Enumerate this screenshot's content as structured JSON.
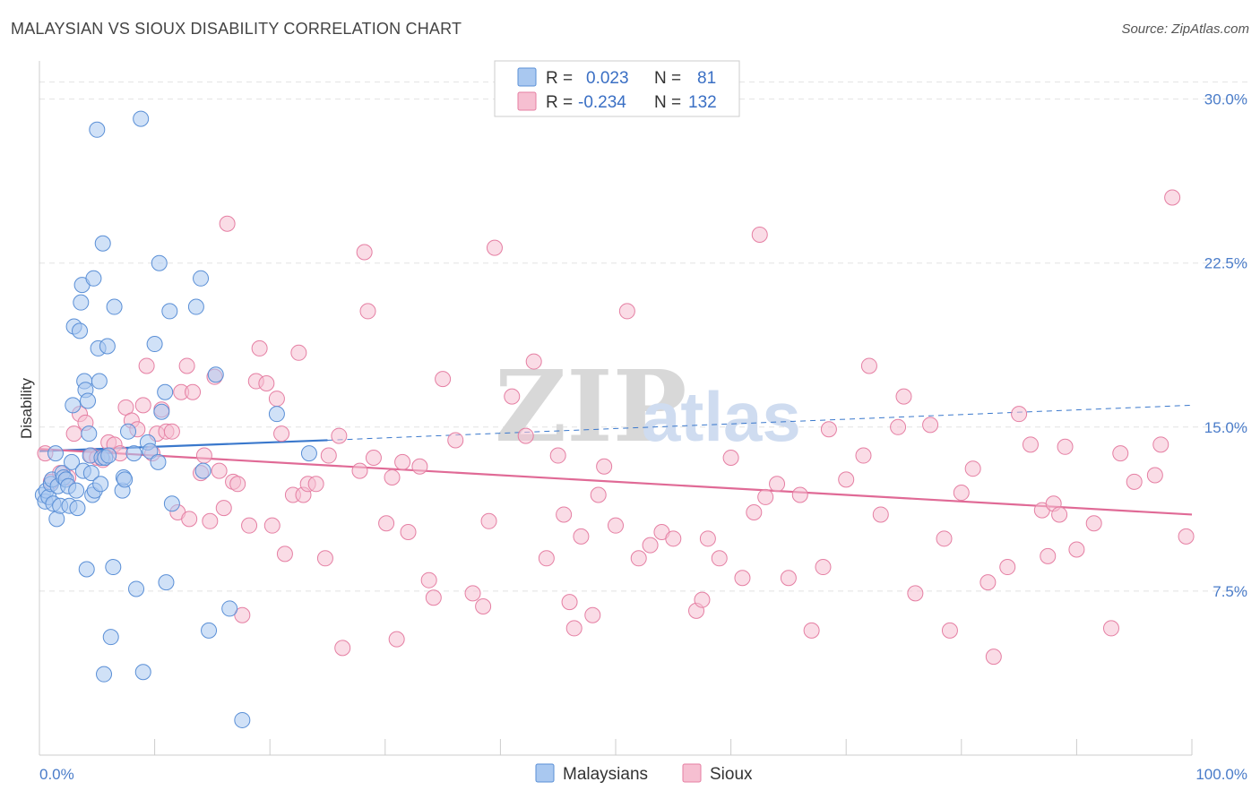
{
  "title": "MALAYSIAN VS SIOUX DISABILITY CORRELATION CHART",
  "source": "Source: ZipAtlas.com",
  "watermark": {
    "zip": "ZIP",
    "atlas": "atlas"
  },
  "legend": {
    "rows": [
      {
        "r_label": "R =",
        "r_value": "0.023",
        "n_label": "N =",
        "n_value": "81",
        "color": "#a9c8f0",
        "stroke": "#5a8fd6"
      },
      {
        "r_label": "R =",
        "r_value": "-0.234",
        "n_label": "N =",
        "n_value": "132",
        "color": "#f6bfd1",
        "stroke": "#e57fa3"
      }
    ]
  },
  "bottom_legend": [
    {
      "label": "Malaysians",
      "color": "#a9c8f0",
      "stroke": "#5a8fd6"
    },
    {
      "label": "Sioux",
      "color": "#f6bfd1",
      "stroke": "#e57fa3"
    }
  ],
  "chart_data": {
    "type": "scatter",
    "xlabel": "",
    "ylabel": "Disability",
    "xlim": [
      0,
      100
    ],
    "ylim": [
      0,
      31.5
    ],
    "x_tick_labels": [
      {
        "value": 0,
        "label": "0.0%"
      },
      {
        "value": 100,
        "label": "100.0%"
      }
    ],
    "y_ticks": [
      {
        "value": 7.5,
        "label": "7.5%"
      },
      {
        "value": 15.0,
        "label": "15.0%"
      },
      {
        "value": 22.5,
        "label": "22.5%"
      },
      {
        "value": 30.0,
        "label": "30.0%"
      }
    ],
    "grid": true,
    "series": [
      {
        "name": "Malaysians",
        "color": "#a9c8f0",
        "stroke": "#5a8fd6",
        "trend": {
          "x0": 0,
          "y0": 13.9,
          "x1": 25,
          "y1": 14.4,
          "dash_to_x": 100,
          "dash_to_y": 16.0,
          "color": "#3a78cc"
        },
        "points": [
          [
            0.3,
            11.9
          ],
          [
            0.5,
            11.6
          ],
          [
            0.6,
            12.1
          ],
          [
            0.8,
            11.8
          ],
          [
            1.0,
            12.4
          ],
          [
            1.1,
            12.6
          ],
          [
            1.2,
            11.5
          ],
          [
            1.4,
            13.8
          ],
          [
            1.5,
            10.8
          ],
          [
            1.6,
            12.3
          ],
          [
            1.8,
            11.4
          ],
          [
            2.0,
            12.9
          ],
          [
            2.1,
            12.7
          ],
          [
            2.3,
            12.6
          ],
          [
            2.5,
            12.3
          ],
          [
            2.6,
            11.4
          ],
          [
            2.8,
            13.4
          ],
          [
            2.9,
            16.0
          ],
          [
            3.0,
            19.6
          ],
          [
            3.2,
            12.1
          ],
          [
            3.3,
            11.3
          ],
          [
            3.5,
            19.4
          ],
          [
            3.6,
            20.7
          ],
          [
            3.7,
            21.5
          ],
          [
            3.8,
            13.0
          ],
          [
            3.9,
            17.1
          ],
          [
            4.0,
            16.7
          ],
          [
            4.1,
            8.5
          ],
          [
            4.2,
            16.2
          ],
          [
            4.3,
            14.7
          ],
          [
            4.4,
            13.7
          ],
          [
            4.5,
            12.9
          ],
          [
            4.6,
            11.9
          ],
          [
            4.7,
            21.8
          ],
          [
            4.8,
            12.1
          ],
          [
            5.0,
            28.6
          ],
          [
            5.1,
            18.6
          ],
          [
            5.2,
            17.1
          ],
          [
            5.3,
            12.4
          ],
          [
            5.4,
            13.6
          ],
          [
            5.5,
            23.4
          ],
          [
            5.6,
            3.7
          ],
          [
            5.7,
            13.6
          ],
          [
            5.9,
            18.7
          ],
          [
            6.0,
            13.7
          ],
          [
            6.2,
            5.4
          ],
          [
            6.4,
            8.6
          ],
          [
            6.5,
            20.5
          ],
          [
            7.2,
            12.1
          ],
          [
            7.3,
            12.7
          ],
          [
            7.4,
            12.6
          ],
          [
            7.7,
            14.8
          ],
          [
            8.2,
            13.8
          ],
          [
            8.4,
            7.6
          ],
          [
            8.8,
            29.1
          ],
          [
            9.0,
            3.8
          ],
          [
            9.4,
            14.3
          ],
          [
            9.6,
            13.9
          ],
          [
            10.0,
            18.8
          ],
          [
            10.3,
            13.4
          ],
          [
            10.4,
            22.5
          ],
          [
            10.6,
            15.7
          ],
          [
            10.9,
            16.6
          ],
          [
            11.0,
            7.9
          ],
          [
            11.3,
            20.3
          ],
          [
            11.5,
            11.5
          ],
          [
            13.6,
            20.5
          ],
          [
            14.0,
            21.8
          ],
          [
            14.2,
            13.0
          ],
          [
            14.7,
            5.7
          ],
          [
            15.3,
            17.4
          ],
          [
            16.5,
            6.7
          ],
          [
            17.6,
            1.6
          ],
          [
            20.6,
            15.6
          ],
          [
            23.4,
            13.8
          ]
        ]
      },
      {
        "name": "Sioux",
        "color": "#f6bfd1",
        "stroke": "#e57fa3",
        "trend": {
          "x0": 0,
          "y0": 14.0,
          "x1": 100,
          "y1": 11.0,
          "color": "#e06a96"
        },
        "points": [
          [
            0.5,
            13.8
          ],
          [
            1.0,
            12.5
          ],
          [
            1.8,
            12.9
          ],
          [
            2.5,
            12.7
          ],
          [
            3.0,
            14.7
          ],
          [
            3.5,
            15.6
          ],
          [
            4.0,
            15.2
          ],
          [
            4.5,
            13.7
          ],
          [
            5.0,
            13.6
          ],
          [
            5.5,
            13.5
          ],
          [
            6.0,
            14.3
          ],
          [
            6.5,
            14.2
          ],
          [
            7.0,
            13.8
          ],
          [
            7.5,
            15.9
          ],
          [
            8.0,
            15.3
          ],
          [
            8.5,
            14.9
          ],
          [
            9.0,
            16.0
          ],
          [
            9.3,
            17.8
          ],
          [
            9.8,
            13.8
          ],
          [
            10.2,
            14.7
          ],
          [
            10.6,
            15.8
          ],
          [
            11.0,
            14.8
          ],
          [
            11.5,
            14.8
          ],
          [
            12.0,
            11.1
          ],
          [
            12.3,
            16.6
          ],
          [
            12.8,
            17.8
          ],
          [
            13.0,
            10.8
          ],
          [
            13.3,
            16.6
          ],
          [
            14.0,
            12.9
          ],
          [
            14.3,
            13.7
          ],
          [
            14.8,
            10.7
          ],
          [
            15.2,
            17.3
          ],
          [
            15.6,
            13.0
          ],
          [
            16.0,
            11.3
          ],
          [
            16.3,
            24.3
          ],
          [
            16.8,
            12.5
          ],
          [
            17.2,
            12.4
          ],
          [
            17.6,
            6.4
          ],
          [
            18.2,
            10.5
          ],
          [
            18.8,
            17.1
          ],
          [
            19.1,
            18.6
          ],
          [
            19.7,
            17.0
          ],
          [
            20.2,
            10.5
          ],
          [
            20.6,
            16.3
          ],
          [
            21.0,
            14.7
          ],
          [
            21.3,
            9.2
          ],
          [
            22.0,
            11.9
          ],
          [
            22.5,
            18.4
          ],
          [
            22.9,
            11.9
          ],
          [
            23.3,
            12.4
          ],
          [
            24.0,
            12.4
          ],
          [
            24.8,
            9.0
          ],
          [
            25.1,
            13.7
          ],
          [
            26.0,
            14.6
          ],
          [
            26.3,
            4.9
          ],
          [
            27.8,
            13.0
          ],
          [
            28.2,
            23.0
          ],
          [
            28.5,
            20.3
          ],
          [
            29.0,
            13.6
          ],
          [
            30.1,
            10.6
          ],
          [
            30.6,
            12.7
          ],
          [
            31.0,
            5.3
          ],
          [
            31.5,
            13.4
          ],
          [
            32.0,
            10.2
          ],
          [
            33.0,
            13.2
          ],
          [
            33.8,
            8.0
          ],
          [
            34.2,
            7.2
          ],
          [
            35.0,
            17.2
          ],
          [
            36.1,
            14.4
          ],
          [
            37.6,
            7.4
          ],
          [
            38.5,
            6.8
          ],
          [
            39.0,
            10.7
          ],
          [
            39.5,
            23.2
          ],
          [
            41.0,
            16.4
          ],
          [
            42.2,
            14.6
          ],
          [
            42.9,
            18.0
          ],
          [
            44.0,
            9.0
          ],
          [
            45.0,
            13.7
          ],
          [
            45.5,
            11.0
          ],
          [
            46.0,
            7.0
          ],
          [
            46.4,
            5.8
          ],
          [
            47.0,
            10.0
          ],
          [
            48.0,
            6.4
          ],
          [
            48.5,
            11.9
          ],
          [
            49.0,
            13.2
          ],
          [
            50.0,
            10.5
          ],
          [
            51.0,
            20.3
          ],
          [
            52.0,
            9.0
          ],
          [
            53.0,
            9.6
          ],
          [
            54.0,
            10.2
          ],
          [
            55.0,
            9.9
          ],
          [
            57.0,
            6.6
          ],
          [
            57.5,
            7.1
          ],
          [
            58.0,
            9.9
          ],
          [
            59.0,
            9.0
          ],
          [
            60.0,
            13.6
          ],
          [
            61.0,
            8.1
          ],
          [
            62.0,
            11.1
          ],
          [
            62.5,
            23.8
          ],
          [
            63.0,
            11.8
          ],
          [
            64.0,
            12.4
          ],
          [
            65.0,
            8.1
          ],
          [
            66.0,
            11.9
          ],
          [
            67.0,
            5.7
          ],
          [
            68.0,
            8.6
          ],
          [
            68.5,
            14.9
          ],
          [
            70.0,
            12.6
          ],
          [
            71.5,
            13.7
          ],
          [
            72.0,
            17.8
          ],
          [
            73.0,
            11.0
          ],
          [
            74.5,
            15.0
          ],
          [
            75.0,
            16.4
          ],
          [
            76.0,
            7.4
          ],
          [
            77.3,
            15.1
          ],
          [
            78.5,
            9.9
          ],
          [
            79.0,
            5.7
          ],
          [
            80.0,
            12.0
          ],
          [
            81.0,
            13.1
          ],
          [
            82.3,
            7.9
          ],
          [
            82.8,
            4.5
          ],
          [
            84.0,
            8.6
          ],
          [
            85.0,
            15.6
          ],
          [
            86.0,
            14.2
          ],
          [
            87.0,
            11.2
          ],
          [
            87.5,
            9.1
          ],
          [
            88.0,
            11.5
          ],
          [
            88.5,
            11.0
          ],
          [
            89.0,
            14.1
          ],
          [
            90.0,
            9.4
          ],
          [
            91.5,
            10.6
          ],
          [
            93.0,
            5.8
          ],
          [
            93.8,
            13.8
          ],
          [
            95.0,
            12.5
          ],
          [
            96.8,
            12.8
          ],
          [
            97.3,
            14.2
          ],
          [
            98.3,
            25.5
          ],
          [
            99.5,
            10.0
          ]
        ]
      }
    ]
  }
}
